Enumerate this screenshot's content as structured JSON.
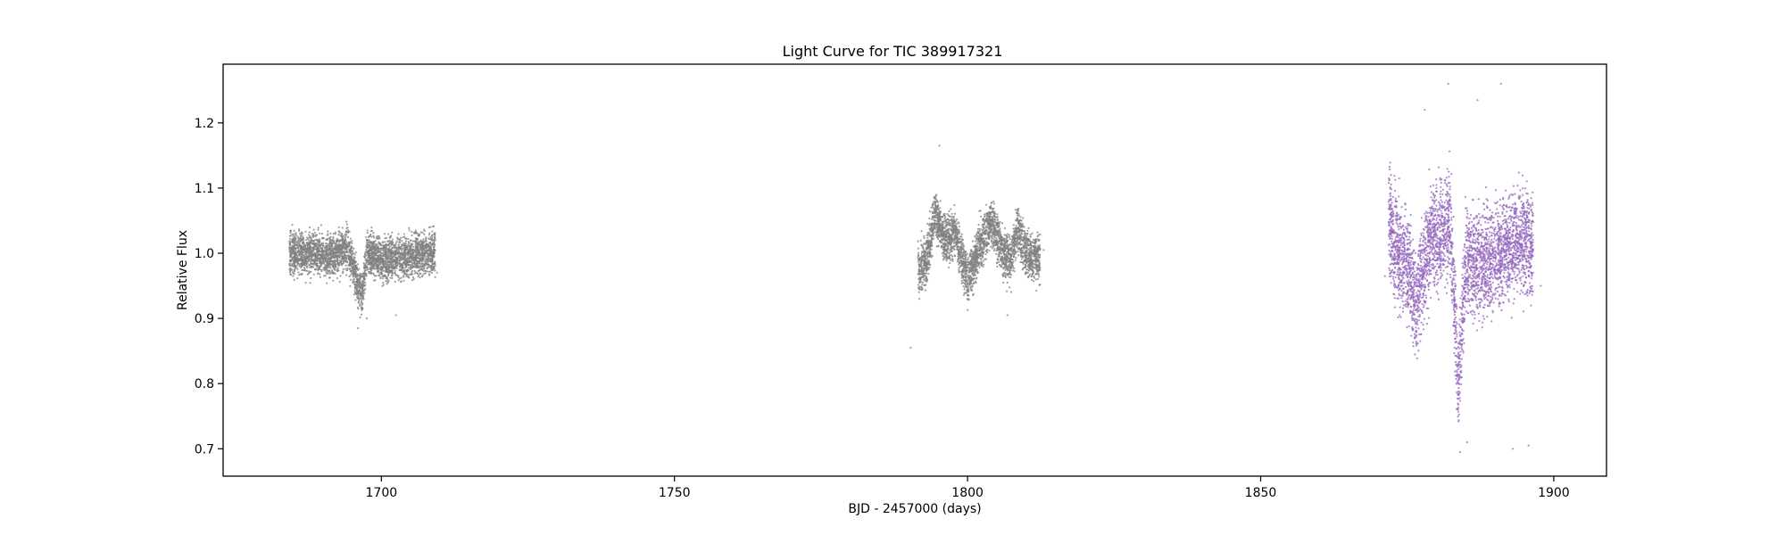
{
  "chart_data": {
    "type": "scatter",
    "title": "Light Curve for TIC 389917321",
    "xlabel": "BJD - 2457000 (days)",
    "ylabel": "Relative Flux",
    "xlim": [
      1673,
      1909
    ],
    "ylim": [
      0.658,
      1.29
    ],
    "xticks": [
      1700,
      1750,
      1800,
      1850,
      1900
    ],
    "yticks": [
      0.7,
      0.8,
      0.9,
      1.0,
      1.1,
      1.2
    ],
    "xtick_labels": [
      "1700",
      "1750",
      "1800",
      "1850",
      "1900"
    ],
    "ytick_labels": [
      "0.7",
      "0.8",
      "0.9",
      "1.0",
      "1.1",
      "1.2"
    ],
    "grid": false,
    "legend": "none",
    "series": [
      {
        "color": "#808080",
        "segments": [
          {
            "x_range": [
              1684.3,
              1709.2
            ],
            "knots": [
              [
                1684.3,
                1.0
              ],
              [
                1688.0,
                1.0
              ],
              [
                1692.0,
                0.995
              ],
              [
                1694.0,
                1.01
              ],
              [
                1695.0,
                0.985
              ],
              [
                1696.0,
                0.95
              ],
              [
                1696.8,
                0.935
              ],
              [
                1697.5,
                1.0
              ],
              [
                1700.0,
                0.99
              ],
              [
                1709.2,
                1.0
              ]
            ],
            "scatter": 0.028,
            "outliers": [
              [
                1684.8,
                1.02
              ],
              [
                1696.0,
                0.885
              ],
              [
                1697.5,
                0.9
              ],
              [
                1702.5,
                0.905
              ],
              [
                1709.5,
                0.97
              ]
            ]
          },
          {
            "x_range": [
              1791.5,
              1812.4
            ],
            "knots": [
              [
                1791.5,
                0.97
              ],
              [
                1793.0,
                0.99
              ],
              [
                1794.5,
                1.06
              ],
              [
                1795.5,
                1.03
              ],
              [
                1797.0,
                1.02
              ],
              [
                1798.0,
                1.03
              ],
              [
                1799.0,
                0.99
              ],
              [
                1800.0,
                0.96
              ],
              [
                1802.5,
                1.02
              ],
              [
                1804.0,
                1.05
              ],
              [
                1806.0,
                1.0
              ],
              [
                1807.5,
                0.99
              ],
              [
                1808.5,
                1.04
              ],
              [
                1810.0,
                1.0
              ],
              [
                1812.4,
                0.99
              ]
            ],
            "scatter": 0.032,
            "outliers": [
              [
                1790.3,
                0.855
              ],
              [
                1795.2,
                1.165
              ],
              [
                1806.8,
                0.905
              ],
              [
                1813.0,
                1.005
              ]
            ]
          }
        ]
      },
      {
        "color": "#9467bd",
        "segments": [
          {
            "x_range": [
              1871.8,
              1896.5
            ],
            "knots": [
              [
                1871.8,
                1.05
              ],
              [
                1873.5,
                1.0
              ],
              [
                1875.5,
                0.97
              ],
              [
                1876.5,
                0.92
              ],
              [
                1877.5,
                0.96
              ],
              [
                1879.0,
                1.03
              ],
              [
                1881.0,
                1.02
              ],
              [
                1882.3,
                1.05
              ],
              [
                1883.0,
                0.95
              ],
              [
                1883.7,
                0.79
              ],
              [
                1884.2,
                0.87
              ],
              [
                1885.0,
                0.99
              ],
              [
                1888.0,
                0.98
              ],
              [
                1891.0,
                1.0
              ],
              [
                1894.0,
                1.02
              ],
              [
                1896.5,
                1.01
              ]
            ],
            "scatter": 0.07,
            "outliers": [
              [
                1871.2,
                0.965
              ],
              [
                1878.0,
                1.22
              ],
              [
                1882.0,
                1.26
              ],
              [
                1884.0,
                0.695
              ],
              [
                1885.2,
                0.71
              ],
              [
                1887.0,
                1.235
              ],
              [
                1891.0,
                1.26
              ],
              [
                1893.0,
                0.7
              ],
              [
                1895.7,
                0.705
              ],
              [
                1897.8,
                0.95
              ]
            ]
          }
        ]
      }
    ]
  }
}
